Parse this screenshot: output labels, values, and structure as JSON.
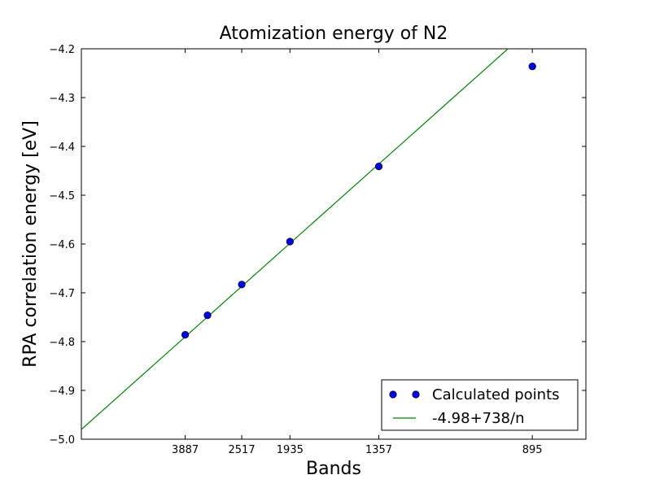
{
  "chart_data": {
    "type": "scatter",
    "title": "Atomization energy of N2",
    "xlabel": "Bands",
    "ylabel": "RPA correlation energy [eV]",
    "ylim": [
      -5.0,
      -4.2
    ],
    "x_scale": "reciprocal",
    "x_tick_labels": [
      "3887",
      "2517",
      "1935",
      "1357",
      "895"
    ],
    "y_ticks": [
      -5.0,
      -4.9,
      -4.8,
      -4.7,
      -4.6,
      -4.5,
      -4.4,
      -4.3,
      -4.2
    ],
    "y_tick_labels": [
      "−5.0",
      "−4.9",
      "−4.8",
      "−4.7",
      "−4.6",
      "−4.5",
      "−4.4",
      "−4.3",
      "−4.2"
    ],
    "grid": false,
    "legend_position": "lower-right",
    "series": [
      {
        "name": "Calculated points",
        "kind": "markers",
        "color": "#0000ff",
        "x": [
          3887,
          3200,
          2517,
          1935,
          1357,
          895
        ],
        "y": [
          -4.786,
          -4.746,
          -4.683,
          -4.595,
          -4.441,
          -4.236
        ]
      },
      {
        "name": "-4.98+738/n",
        "kind": "line",
        "color": "#008000",
        "intercept": -4.98,
        "slope": 738
      }
    ]
  }
}
